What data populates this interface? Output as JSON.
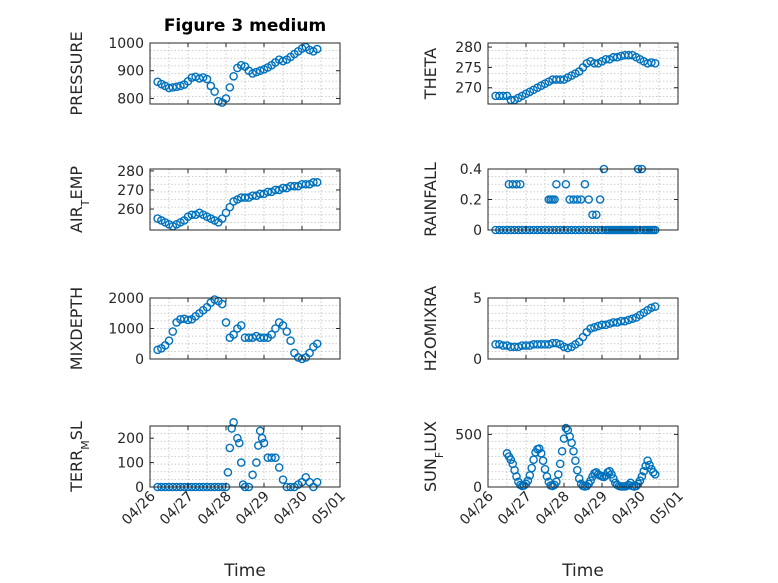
{
  "figure": {
    "title": "Figure 3 medium",
    "marker_color": "#0072BD",
    "xtick_labels": [
      "04/26",
      "04/27",
      "04/28",
      "04/29",
      "04/30",
      "05/01"
    ],
    "xlabel": "Time"
  },
  "chart_data": [
    {
      "type": "scatter",
      "title": "Figure 3 medium",
      "ylabel": "PRESSURE",
      "xlabel": "",
      "xlim": [
        0,
        5
      ],
      "ylim": [
        780,
        1000
      ],
      "yticks": [
        800,
        900,
        1000
      ],
      "grid": true,
      "x": [
        0.2,
        0.3,
        0.4,
        0.5,
        0.6,
        0.7,
        0.8,
        0.9,
        1.0,
        1.1,
        1.2,
        1.3,
        1.4,
        1.5,
        1.6,
        1.7,
        1.8,
        1.9,
        2.0,
        2.1,
        2.2,
        2.3,
        2.4,
        2.5,
        2.6,
        2.7,
        2.8,
        2.9,
        3.0,
        3.1,
        3.2,
        3.3,
        3.4,
        3.5,
        3.6,
        3.7,
        3.8,
        3.9,
        4.0,
        4.1,
        4.2,
        4.3,
        4.4
      ],
      "y": [
        860,
        852,
        845,
        838,
        840,
        842,
        845,
        850,
        862,
        875,
        878,
        872,
        876,
        870,
        845,
        825,
        790,
        785,
        800,
        840,
        880,
        910,
        920,
        915,
        900,
        890,
        895,
        900,
        905,
        912,
        920,
        930,
        940,
        935,
        940,
        950,
        960,
        970,
        980,
        985,
        975,
        970,
        978
      ]
    },
    {
      "type": "scatter",
      "ylabel": "THETA",
      "xlabel": "",
      "xlim": [
        0,
        5
      ],
      "ylim": [
        266,
        281
      ],
      "yticks": [
        270,
        275,
        280
      ],
      "grid": true,
      "x": [
        0.2,
        0.3,
        0.4,
        0.5,
        0.6,
        0.7,
        0.8,
        0.9,
        1.0,
        1.1,
        1.2,
        1.3,
        1.4,
        1.5,
        1.6,
        1.7,
        1.8,
        1.9,
        2.0,
        2.1,
        2.2,
        2.3,
        2.4,
        2.5,
        2.6,
        2.7,
        2.8,
        2.9,
        3.0,
        3.1,
        3.2,
        3.3,
        3.4,
        3.5,
        3.6,
        3.7,
        3.8,
        3.9,
        4.0,
        4.1,
        4.2,
        4.3,
        4.4
      ],
      "y": [
        268,
        268,
        268,
        268,
        267,
        267,
        267.5,
        268,
        268.5,
        269,
        269.5,
        270,
        270.5,
        271,
        271.5,
        272,
        272,
        272,
        272,
        272.5,
        273,
        273.5,
        274,
        275,
        276,
        276.5,
        276,
        276,
        276.5,
        277,
        277,
        277.5,
        277.5,
        277.8,
        278,
        278,
        278,
        277.5,
        277,
        276.5,
        276,
        276.2,
        276
      ]
    },
    {
      "type": "scatter",
      "ylabel": "AIR_TEMP",
      "xlabel": "",
      "xlim": [
        0,
        5
      ],
      "ylim": [
        249,
        281
      ],
      "yticks": [
        260,
        270,
        280
      ],
      "grid": true,
      "x": [
        0.2,
        0.3,
        0.4,
        0.5,
        0.6,
        0.7,
        0.8,
        0.9,
        1.0,
        1.1,
        1.2,
        1.3,
        1.4,
        1.5,
        1.6,
        1.7,
        1.8,
        1.9,
        2.0,
        2.1,
        2.2,
        2.3,
        2.4,
        2.5,
        2.6,
        2.7,
        2.8,
        2.9,
        3.0,
        3.1,
        3.2,
        3.3,
        3.4,
        3.5,
        3.6,
        3.7,
        3.8,
        3.9,
        4.0,
        4.1,
        4.2,
        4.3,
        4.4
      ],
      "y": [
        255,
        254,
        253,
        252,
        251,
        252,
        253,
        254,
        256,
        257,
        257,
        258,
        257,
        256,
        255,
        254,
        253,
        255,
        258,
        261,
        264,
        265,
        266,
        266,
        266,
        267,
        267,
        268,
        268,
        269,
        269,
        270,
        270,
        271,
        271,
        272,
        272,
        272,
        273,
        273,
        273,
        274,
        274
      ]
    },
    {
      "type": "scatter",
      "ylabel": "RAINFALL",
      "xlabel": "",
      "xlim": [
        0,
        5
      ],
      "ylim": [
        0,
        0.4
      ],
      "yticks": [
        0,
        0.2,
        0.4
      ],
      "grid": true,
      "x": [
        0.2,
        0.3,
        0.4,
        0.5,
        0.6,
        0.7,
        0.8,
        0.9,
        1.0,
        1.1,
        1.2,
        1.3,
        1.4,
        1.5,
        1.6,
        1.7,
        1.8,
        1.9,
        2.0,
        2.1,
        2.2,
        2.3,
        2.4,
        2.5,
        2.6,
        2.7,
        2.8,
        2.9,
        3.0,
        3.1,
        3.2,
        3.3,
        3.4,
        3.5,
        3.6,
        3.7,
        3.8,
        3.9,
        4.0,
        4.1,
        4.2,
        4.3,
        4.4,
        0.55,
        0.65,
        0.75,
        0.85,
        1.6,
        1.65,
        1.7,
        1.75,
        1.8,
        2.05,
        2.15,
        2.25,
        2.35,
        2.45,
        2.55,
        2.65,
        2.75,
        2.85,
        2.95,
        3.05,
        3.15,
        3.25,
        3.35,
        3.45,
        3.55,
        3.65,
        3.75,
        3.85,
        3.95,
        4.05,
        4.15,
        4.25,
        4.35
      ],
      "y": [
        0,
        0,
        0,
        0,
        0,
        0,
        0,
        0,
        0,
        0,
        0,
        0,
        0,
        0,
        0,
        0,
        0,
        0,
        0,
        0,
        0,
        0,
        0,
        0,
        0,
        0,
        0,
        0,
        0,
        0,
        0,
        0,
        0,
        0,
        0,
        0,
        0,
        0,
        0,
        0,
        0,
        0,
        0,
        0.3,
        0.3,
        0.3,
        0.3,
        0.2,
        0.2,
        0.2,
        0.2,
        0.3,
        0.3,
        0.2,
        0.2,
        0.2,
        0.2,
        0.3,
        0.2,
        0.1,
        0.1,
        0.2,
        0.4,
        0,
        0,
        0,
        0,
        0,
        0,
        0,
        0,
        0.4,
        0.4,
        0,
        0,
        0
      ]
    },
    {
      "type": "scatter",
      "ylabel": "MIXDEPTH",
      "xlabel": "",
      "xlim": [
        0,
        5
      ],
      "ylim": [
        0,
        2000
      ],
      "yticks": [
        0,
        1000,
        2000
      ],
      "grid": true,
      "x": [
        0.2,
        0.3,
        0.4,
        0.5,
        0.6,
        0.7,
        0.8,
        0.9,
        1.0,
        1.1,
        1.2,
        1.3,
        1.4,
        1.5,
        1.6,
        1.7,
        1.8,
        1.9,
        2.0,
        2.1,
        2.2,
        2.3,
        2.4,
        2.5,
        2.6,
        2.7,
        2.8,
        2.9,
        3.0,
        3.1,
        3.2,
        3.3,
        3.4,
        3.5,
        3.6,
        3.7,
        3.8,
        3.9,
        4.0,
        4.1,
        4.2,
        4.3,
        4.4
      ],
      "y": [
        300,
        350,
        450,
        600,
        900,
        1200,
        1300,
        1320,
        1280,
        1300,
        1400,
        1500,
        1600,
        1700,
        1850,
        1950,
        1900,
        1800,
        1200,
        700,
        800,
        1000,
        1100,
        700,
        700,
        700,
        750,
        700,
        700,
        700,
        800,
        1000,
        1200,
        1100,
        900,
        600,
        200,
        50,
        0,
        50,
        200,
        400,
        500
      ]
    },
    {
      "type": "scatter",
      "ylabel": "H2OMIXRA",
      "xlabel": "",
      "xlim": [
        0,
        5
      ],
      "ylim": [
        0,
        5
      ],
      "yticks": [
        0,
        5
      ],
      "grid": true,
      "x": [
        0.2,
        0.3,
        0.4,
        0.5,
        0.6,
        0.7,
        0.8,
        0.9,
        1.0,
        1.1,
        1.2,
        1.3,
        1.4,
        1.5,
        1.6,
        1.7,
        1.8,
        1.9,
        2.0,
        2.1,
        2.2,
        2.3,
        2.4,
        2.5,
        2.6,
        2.7,
        2.8,
        2.9,
        3.0,
        3.1,
        3.2,
        3.3,
        3.4,
        3.5,
        3.6,
        3.7,
        3.8,
        3.9,
        4.0,
        4.1,
        4.2,
        4.3,
        4.4
      ],
      "y": [
        1.2,
        1.2,
        1.1,
        1.1,
        1.0,
        1.0,
        1.0,
        1.1,
        1.1,
        1.1,
        1.2,
        1.2,
        1.2,
        1.2,
        1.2,
        1.3,
        1.3,
        1.2,
        1.0,
        0.9,
        1.0,
        1.2,
        1.4,
        1.8,
        2.2,
        2.5,
        2.6,
        2.7,
        2.8,
        2.8,
        2.9,
        3.0,
        3.0,
        3.1,
        3.1,
        3.2,
        3.3,
        3.4,
        3.6,
        3.8,
        4.0,
        4.2,
        4.3
      ]
    },
    {
      "type": "scatter",
      "ylabel": "TERR_MSL",
      "xlabel": "Time",
      "xlim": [
        0,
        5
      ],
      "ylim": [
        0,
        250
      ],
      "yticks": [
        0,
        100,
        200
      ],
      "grid": true,
      "x": [
        0.2,
        0.3,
        0.4,
        0.5,
        0.6,
        0.7,
        0.8,
        0.9,
        1.0,
        1.1,
        1.2,
        1.3,
        1.4,
        1.5,
        1.6,
        1.7,
        1.8,
        1.9,
        2.0,
        2.05,
        2.1,
        2.15,
        2.2,
        2.3,
        2.35,
        2.4,
        2.45,
        2.5,
        2.6,
        2.7,
        2.8,
        2.85,
        2.9,
        2.95,
        3.0,
        3.1,
        3.2,
        3.3,
        3.4,
        3.5,
        3.6,
        3.7,
        3.8,
        3.9,
        4.0,
        4.1,
        4.2,
        4.3,
        4.4
      ],
      "y": [
        0,
        0,
        0,
        0,
        0,
        0,
        0,
        0,
        0,
        0,
        0,
        0,
        0,
        0,
        0,
        0,
        0,
        0,
        0,
        60,
        160,
        240,
        265,
        200,
        180,
        100,
        10,
        0,
        0,
        50,
        100,
        170,
        230,
        200,
        180,
        120,
        120,
        120,
        80,
        30,
        0,
        0,
        0,
        10,
        20,
        40,
        20,
        0,
        20
      ]
    },
    {
      "type": "scatter",
      "ylabel": "SUN_FLUX",
      "xlabel": "Time",
      "xlim": [
        0,
        5
      ],
      "ylim": [
        0,
        580
      ],
      "yticks": [
        0,
        500
      ],
      "grid": true,
      "x": [
        0.5,
        0.55,
        0.6,
        0.65,
        0.7,
        0.75,
        0.8,
        0.85,
        0.9,
        0.95,
        1.0,
        1.05,
        1.1,
        1.15,
        1.2,
        1.25,
        1.3,
        1.35,
        1.4,
        1.45,
        1.5,
        1.55,
        1.6,
        1.65,
        1.7,
        1.75,
        1.8,
        1.85,
        1.9,
        1.95,
        2.0,
        2.05,
        2.1,
        2.15,
        2.2,
        2.25,
        2.3,
        2.35,
        2.4,
        2.45,
        2.5,
        2.55,
        2.6,
        2.65,
        2.7,
        2.75,
        2.8,
        2.85,
        2.9,
        2.95,
        3.0,
        3.05,
        3.1,
        3.15,
        3.2,
        3.25,
        3.3,
        3.35,
        3.4,
        3.45,
        3.5,
        3.55,
        3.6,
        3.65,
        3.7,
        3.75,
        3.8,
        3.85,
        3.9,
        3.95,
        4.0,
        4.05,
        4.1,
        4.15,
        4.2,
        4.25,
        4.3,
        4.35,
        4.4
      ],
      "y": [
        320,
        290,
        260,
        220,
        160,
        100,
        50,
        20,
        10,
        15,
        30,
        60,
        110,
        180,
        260,
        330,
        360,
        365,
        320,
        250,
        170,
        100,
        50,
        15,
        10,
        20,
        50,
        120,
        220,
        340,
        460,
        560,
        540,
        480,
        420,
        340,
        250,
        160,
        80,
        30,
        10,
        5,
        10,
        30,
        60,
        100,
        130,
        140,
        120,
        110,
        100,
        95,
        110,
        140,
        150,
        120,
        80,
        40,
        20,
        10,
        5,
        5,
        5,
        10,
        20,
        40,
        10,
        5,
        10,
        30,
        60,
        100,
        150,
        200,
        250,
        210,
        170,
        140,
        120
      ]
    }
  ]
}
